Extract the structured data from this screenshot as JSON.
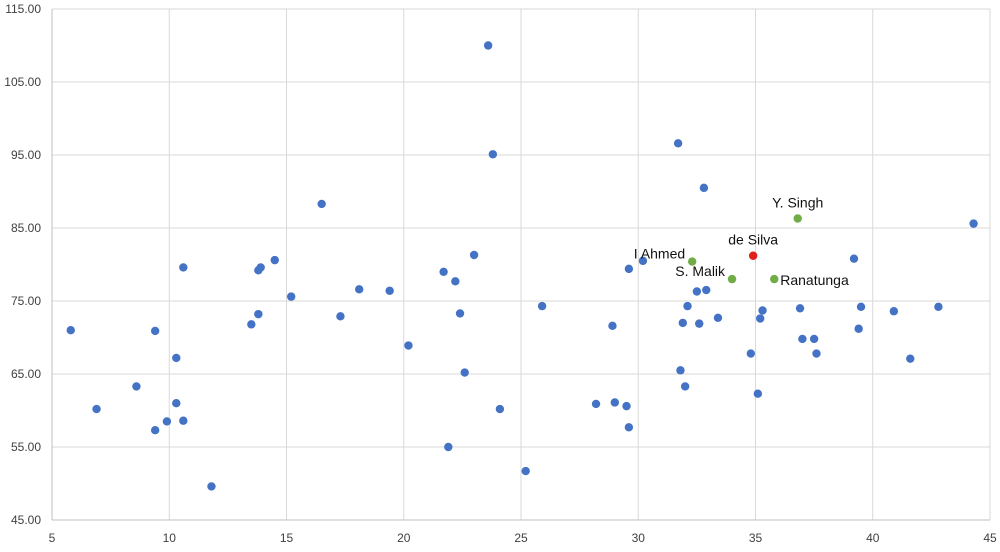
{
  "chart_data": {
    "type": "scatter",
    "xlim": [
      5,
      45
    ],
    "ylim": [
      45,
      115
    ],
    "x_ticks": [
      5,
      10,
      15,
      20,
      25,
      30,
      35,
      40,
      45
    ],
    "y_ticks": [
      45,
      55,
      65,
      75,
      85,
      95,
      105,
      115
    ],
    "x_tick_labels": [
      "5",
      "10",
      "15",
      "20",
      "25",
      "30",
      "35",
      "40",
      "45"
    ],
    "y_tick_labels": [
      "45.00",
      "55.00",
      "65.00",
      "75.00",
      "85.00",
      "95.00",
      "105.00",
      "115.00"
    ],
    "grid": true,
    "colors": {
      "default": "#4472c4",
      "highlight": "#70ad47",
      "focus": "#e0201a"
    },
    "series": [
      {
        "color": "#4472c4",
        "points": [
          [
            5.8,
            71.0
          ],
          [
            6.9,
            60.2
          ],
          [
            8.6,
            63.3
          ],
          [
            9.4,
            57.3
          ],
          [
            9.4,
            70.9
          ],
          [
            9.9,
            58.5
          ],
          [
            10.3,
            67.2
          ],
          [
            10.3,
            61.0
          ],
          [
            10.6,
            79.6
          ],
          [
            10.6,
            58.6
          ],
          [
            11.8,
            49.6
          ],
          [
            13.5,
            71.8
          ],
          [
            13.8,
            79.2
          ],
          [
            13.9,
            79.6
          ],
          [
            13.8,
            73.2
          ],
          [
            14.5,
            80.6
          ],
          [
            15.2,
            75.6
          ],
          [
            16.5,
            88.3
          ],
          [
            17.3,
            72.9
          ],
          [
            18.1,
            76.6
          ],
          [
            19.4,
            76.4
          ],
          [
            20.2,
            68.9
          ],
          [
            21.7,
            79.0
          ],
          [
            21.9,
            55.0
          ],
          [
            22.2,
            77.7
          ],
          [
            22.4,
            73.3
          ],
          [
            22.6,
            65.2
          ],
          [
            23.0,
            81.3
          ],
          [
            23.6,
            110.0
          ],
          [
            23.8,
            95.1
          ],
          [
            24.1,
            60.2
          ],
          [
            25.2,
            51.7
          ],
          [
            25.9,
            74.3
          ],
          [
            28.2,
            60.9
          ],
          [
            28.9,
            71.6
          ],
          [
            29.0,
            61.1
          ],
          [
            29.5,
            60.6
          ],
          [
            29.6,
            57.7
          ],
          [
            29.6,
            79.4
          ],
          [
            30.2,
            80.5
          ],
          [
            31.7,
            96.6
          ],
          [
            31.8,
            65.5
          ],
          [
            31.9,
            72.0
          ],
          [
            32.0,
            63.3
          ],
          [
            32.1,
            74.3
          ],
          [
            32.5,
            76.3
          ],
          [
            32.6,
            71.9
          ],
          [
            32.8,
            90.5
          ],
          [
            32.9,
            76.5
          ],
          [
            33.4,
            72.7
          ],
          [
            34.8,
            67.8
          ],
          [
            35.1,
            62.3
          ],
          [
            35.2,
            72.6
          ],
          [
            35.3,
            73.7
          ],
          [
            36.9,
            74.0
          ],
          [
            37.0,
            69.8
          ],
          [
            37.5,
            69.8
          ],
          [
            37.6,
            67.8
          ],
          [
            39.2,
            80.8
          ],
          [
            39.4,
            71.2
          ],
          [
            39.5,
            74.2
          ],
          [
            40.9,
            73.6
          ],
          [
            41.6,
            67.1
          ],
          [
            42.8,
            74.2
          ],
          [
            44.3,
            85.6
          ]
        ]
      }
    ],
    "labeled_points": [
      {
        "label": "I Ahmed",
        "x": 32.3,
        "y": 80.4,
        "color": "#70ad47",
        "anchor": "end"
      },
      {
        "label": "S. Malik",
        "x": 34.0,
        "y": 78.0,
        "color": "#70ad47",
        "anchor": "end"
      },
      {
        "label": "Ranatunga",
        "x": 35.8,
        "y": 78.0,
        "color": "#70ad47",
        "anchor": "start"
      },
      {
        "label": "de Silva",
        "x": 34.9,
        "y": 81.2,
        "color": "#e0201a",
        "anchor": "middle"
      },
      {
        "label": "Y. Singh",
        "x": 36.8,
        "y": 86.3,
        "color": "#70ad47",
        "anchor": "middle"
      }
    ]
  }
}
